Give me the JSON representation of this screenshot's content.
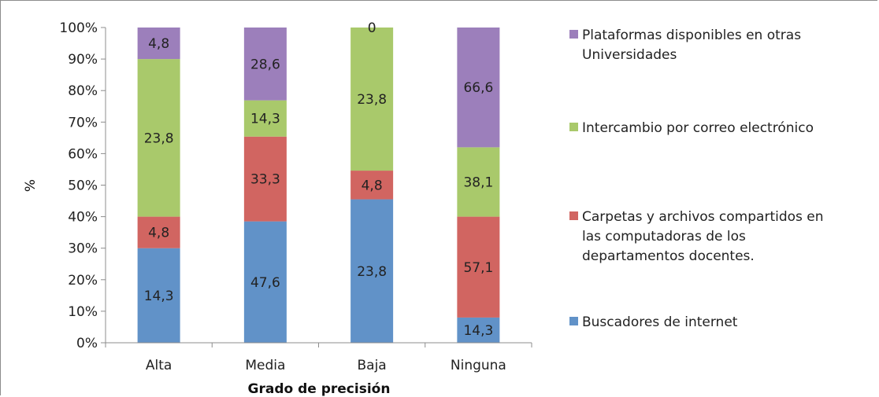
{
  "chart_data": {
    "type": "bar",
    "stacked": true,
    "normalized": true,
    "categories": [
      "Alta",
      "Media",
      "Baja",
      "Ninguna"
    ],
    "xlabel": "Grado de precisión",
    "ylabel": "%",
    "ylim": [
      0,
      100
    ],
    "yticks": [
      "0%",
      "10%",
      "20%",
      "30%",
      "40%",
      "50%",
      "60%",
      "70%",
      "80%",
      "90%",
      "100%"
    ],
    "grid": false,
    "legend_position": "right",
    "series": [
      {
        "name": "Buscadores de internet",
        "color": "#6192c8",
        "labels": [
          "14,3",
          "47,6",
          "23,8",
          "14,3"
        ],
        "values": [
          14.3,
          47.6,
          23.8,
          14.3
        ],
        "percent": [
          30,
          38.5,
          45.5,
          8
        ]
      },
      {
        "name": "Carpetas y archivos compartidos en las computadoras de los departamentos docentes.",
        "legend_lines": [
          "Carpetas y archivos  compartidos en",
          "las computadoras de los",
          "departamentos docentes."
        ],
        "color": "#d16561",
        "labels": [
          "4,8",
          "33,3",
          "4,8",
          "57,1"
        ],
        "values": [
          4.8,
          33.3,
          4.8,
          57.1
        ],
        "percent": [
          10,
          26.9,
          9.1,
          32
        ]
      },
      {
        "name": "Intercambio por correo electrónico",
        "legend_lines": [
          "Intercambio por correo electrónico"
        ],
        "color": "#a9c96b",
        "labels": [
          "23,8",
          "14,3",
          "23,8",
          "38,1"
        ],
        "values": [
          23.8,
          14.3,
          23.8,
          38.1
        ],
        "percent": [
          50,
          11.5,
          45.4,
          22
        ]
      },
      {
        "name": "Plataformas disponibles en otras Universidades",
        "legend_lines": [
          "Plataformas  disponibles en otras",
          "Universidades"
        ],
        "color": "#9c7fbb",
        "labels": [
          "4,8",
          "28,6",
          "0",
          "66,6"
        ],
        "values": [
          4.8,
          28.6,
          0,
          66.6
        ],
        "percent": [
          10,
          23.1,
          0,
          38
        ]
      }
    ]
  }
}
